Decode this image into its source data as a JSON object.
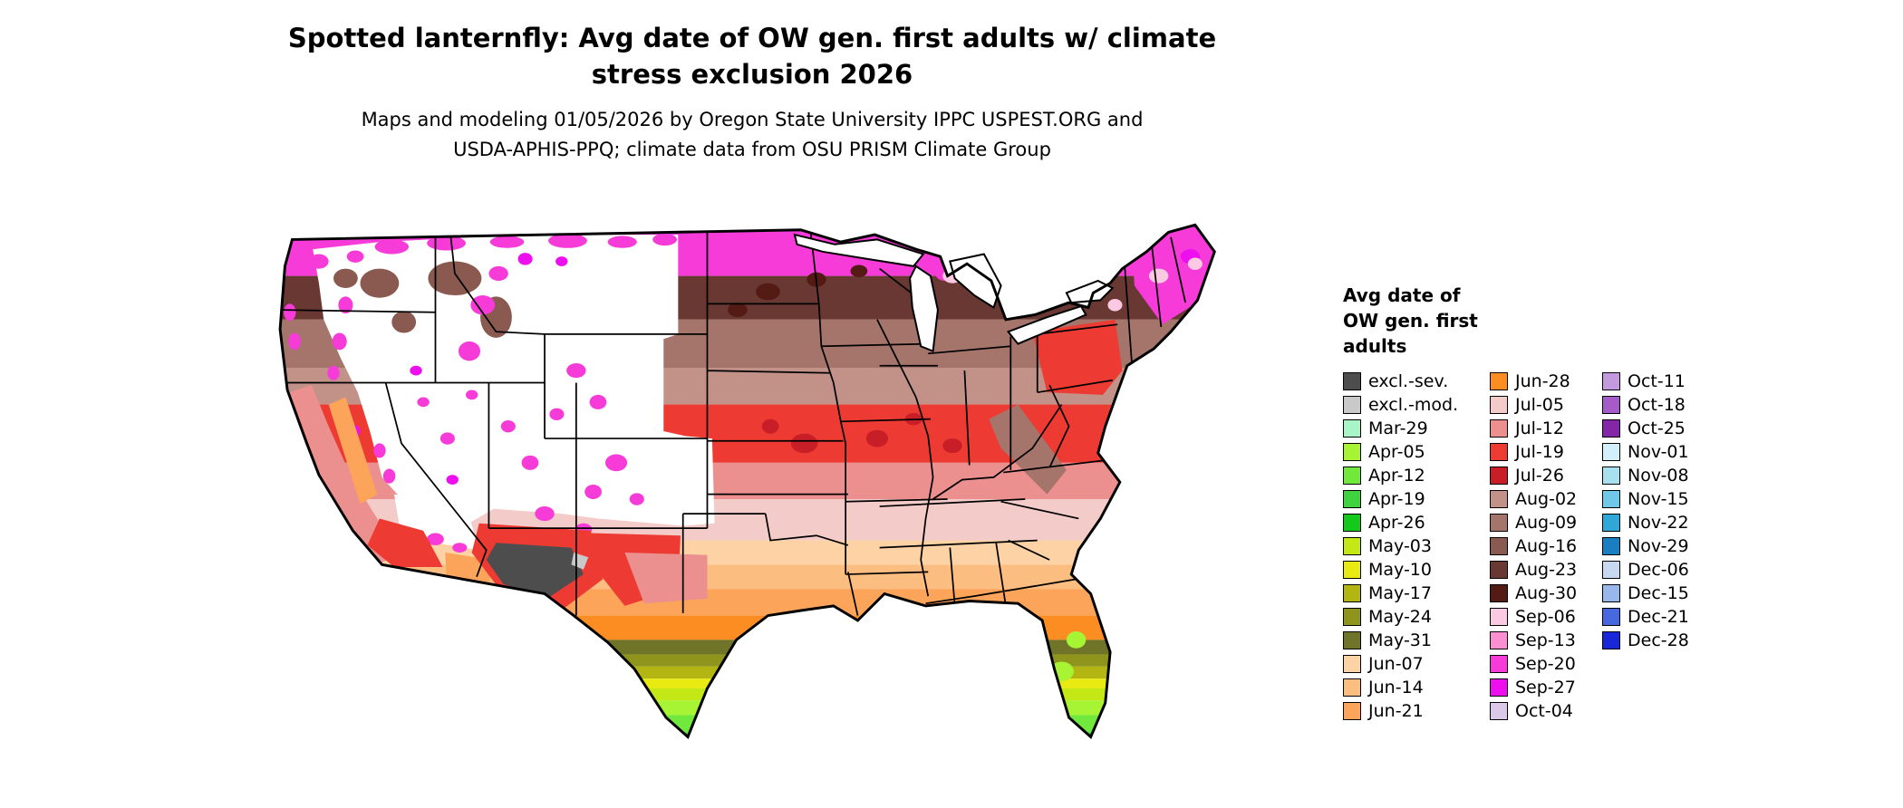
{
  "header": {
    "title_line1": "Spotted lanternfly: Avg date of OW gen. first adults w/ climate",
    "title_line2": "stress exclusion 2026",
    "subtitle_line1": "Maps and modeling 01/05/2026 by Oregon State University IPPC USPEST.ORG and",
    "subtitle_line2": "USDA-APHIS-PPQ; climate data from OSU PRISM Climate Group"
  },
  "legend": {
    "title_lines": [
      "Avg date of",
      "OW gen. first",
      "adults"
    ],
    "columns": [
      {
        "entries": [
          {
            "label": "excl.-sev.",
            "color": "#4d4d4d"
          },
          {
            "label": "excl.-mod.",
            "color": "#c9c9c9"
          },
          {
            "label": "Mar-29",
            "color": "#a8f5c8"
          },
          {
            "label": "Apr-05",
            "color": "#a7f434"
          },
          {
            "label": "Apr-12",
            "color": "#70e93c"
          },
          {
            "label": "Apr-19",
            "color": "#3fd43f"
          },
          {
            "label": "Apr-26",
            "color": "#12c91c"
          },
          {
            "label": "May-03",
            "color": "#c3e816"
          },
          {
            "label": "May-10",
            "color": "#e8ea12"
          },
          {
            "label": "May-17",
            "color": "#b3b512"
          },
          {
            "label": "May-24",
            "color": "#8f941c"
          },
          {
            "label": "May-31",
            "color": "#6f7428"
          },
          {
            "label": "Jun-07",
            "color": "#fdd2a4"
          },
          {
            "label": "Jun-14",
            "color": "#fcbd80"
          },
          {
            "label": "Jun-21",
            "color": "#fca45a"
          }
        ]
      },
      {
        "entries": [
          {
            "label": "Jun-28",
            "color": "#fb8d23"
          },
          {
            "label": "Jul-05",
            "color": "#f3cbc8"
          },
          {
            "label": "Jul-12",
            "color": "#ec8f8f"
          },
          {
            "label": "Jul-19",
            "color": "#ed3b33"
          },
          {
            "label": "Jul-26",
            "color": "#c81e28"
          },
          {
            "label": "Aug-02",
            "color": "#c29288"
          },
          {
            "label": "Aug-09",
            "color": "#a5756b"
          },
          {
            "label": "Aug-16",
            "color": "#8a5a50"
          },
          {
            "label": "Aug-23",
            "color": "#693832"
          },
          {
            "label": "Aug-30",
            "color": "#541b15"
          },
          {
            "label": "Sep-06",
            "color": "#fcc9e2"
          },
          {
            "label": "Sep-13",
            "color": "#fb8fd2"
          },
          {
            "label": "Sep-20",
            "color": "#f63bd8"
          },
          {
            "label": "Sep-27",
            "color": "#ee0fee"
          },
          {
            "label": "Oct-04",
            "color": "#dcc8e8"
          }
        ]
      },
      {
        "entries": [
          {
            "label": "Oct-11",
            "color": "#c49ade"
          },
          {
            "label": "Oct-18",
            "color": "#a55cc8"
          },
          {
            "label": "Oct-25",
            "color": "#8426a8"
          },
          {
            "label": "Nov-01",
            "color": "#d2f0fb"
          },
          {
            "label": "Nov-08",
            "color": "#a8e0f0"
          },
          {
            "label": "Nov-15",
            "color": "#70c8e8"
          },
          {
            "label": "Nov-22",
            "color": "#2fa8d8"
          },
          {
            "label": "Nov-29",
            "color": "#1880c0"
          },
          {
            "label": "Dec-06",
            "color": "#c8d8f0"
          },
          {
            "label": "Dec-15",
            "color": "#98b8ec"
          },
          {
            "label": "Dec-21",
            "color": "#4868e0"
          },
          {
            "label": "Dec-28",
            "color": "#1828d8"
          }
        ]
      }
    ]
  }
}
